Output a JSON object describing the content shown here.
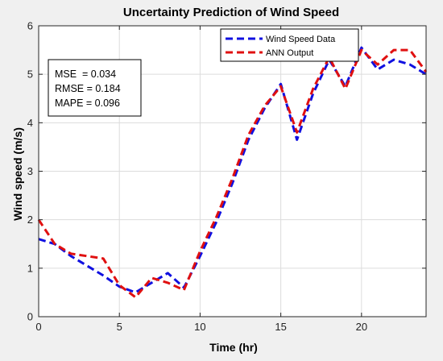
{
  "chart_data": {
    "type": "line",
    "title": "Uncertainty Prediction of Wind Speed",
    "xlabel": "Time (hr)",
    "ylabel": "Wind speed (m/s)",
    "xlim": [
      0,
      24
    ],
    "ylim": [
      0,
      6
    ],
    "xticks": [
      0,
      5,
      10,
      15,
      20
    ],
    "yticks": [
      0,
      1,
      2,
      3,
      4,
      5,
      6
    ],
    "grid": true,
    "legend_position": "top-right",
    "stats": [
      "MSE  = 0.034",
      "RMSE = 0.184",
      "MAPE = 0.096"
    ],
    "series": [
      {
        "name": "Wind Speed Data",
        "color": "#1010e0",
        "style": "dashed",
        "x": [
          0,
          1,
          2,
          3,
          4,
          5,
          6,
          7,
          8,
          9,
          10,
          11,
          12,
          13,
          14,
          15,
          16,
          17,
          18,
          19,
          20,
          21,
          22,
          23,
          24
        ],
        "y": [
          1.6,
          1.5,
          1.25,
          1.05,
          0.85,
          0.62,
          0.5,
          0.7,
          0.9,
          0.6,
          1.25,
          1.95,
          2.75,
          3.65,
          4.3,
          4.8,
          3.65,
          4.6,
          5.3,
          4.75,
          5.55,
          5.1,
          5.3,
          5.2,
          5.0
        ]
      },
      {
        "name": "ANN Output",
        "color": "#e01010",
        "style": "dashed",
        "x": [
          0,
          1,
          2,
          3,
          4,
          5,
          6,
          7,
          8,
          9,
          10,
          11,
          12,
          13,
          14,
          15,
          16,
          17,
          18,
          19,
          20,
          21,
          22,
          23,
          24
        ],
        "y": [
          2.0,
          1.5,
          1.3,
          1.25,
          1.2,
          0.65,
          0.4,
          0.8,
          0.7,
          0.55,
          1.35,
          2.05,
          2.85,
          3.75,
          4.35,
          4.75,
          3.8,
          4.7,
          5.35,
          4.7,
          5.5,
          5.2,
          5.5,
          5.5,
          5.05
        ]
      }
    ]
  }
}
